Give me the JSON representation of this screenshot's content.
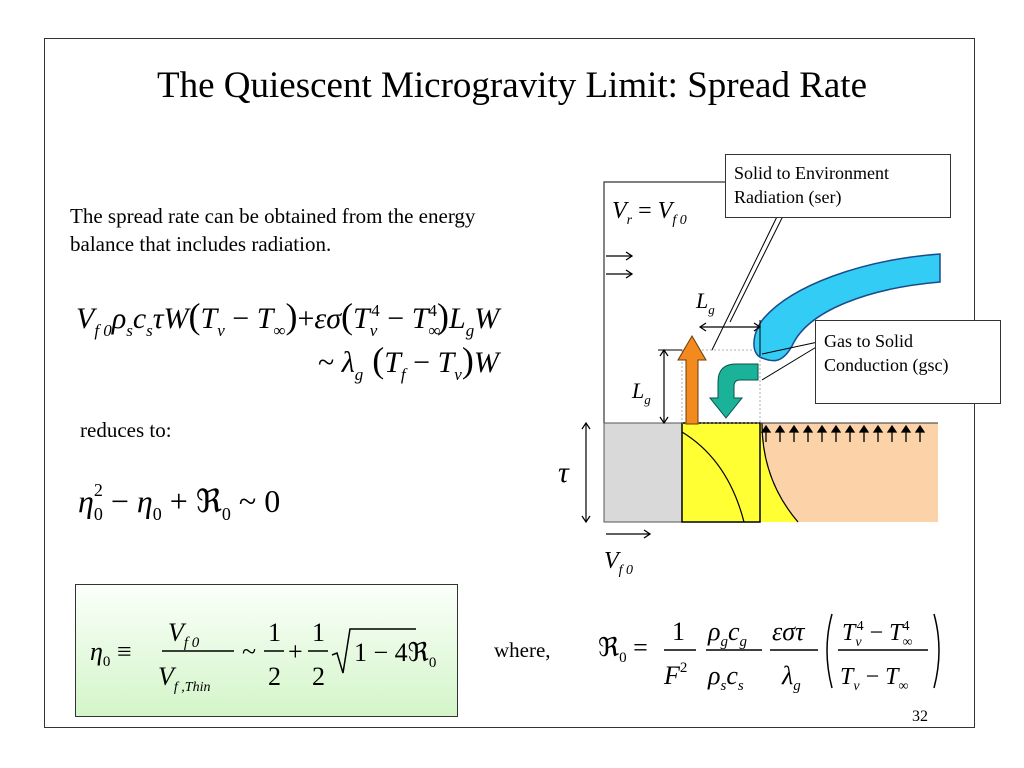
{
  "title": "The Quiescent Microgravity Limit: Spread Rate",
  "intro_text": "The spread rate can be obtained from the energy balance that includes radiation.",
  "reduces_text": "reduces to:",
  "where_text": "where,",
  "page_number": "32",
  "callouts": {
    "ser": "Solid to Environment Radiation (ser)",
    "gsc": "Gas to Solid Conduction (gsc)"
  },
  "colors": {
    "flame_blue": "#33ccf5",
    "yellow_zone": "#ffff33",
    "gray_fuel": "#d9d9d9",
    "peach_fuel": "#fcd3a8",
    "orange_arrow": "#f28a1e",
    "teal_arrow": "#1ab39a",
    "box_green": "#d3f5c8"
  }
}
